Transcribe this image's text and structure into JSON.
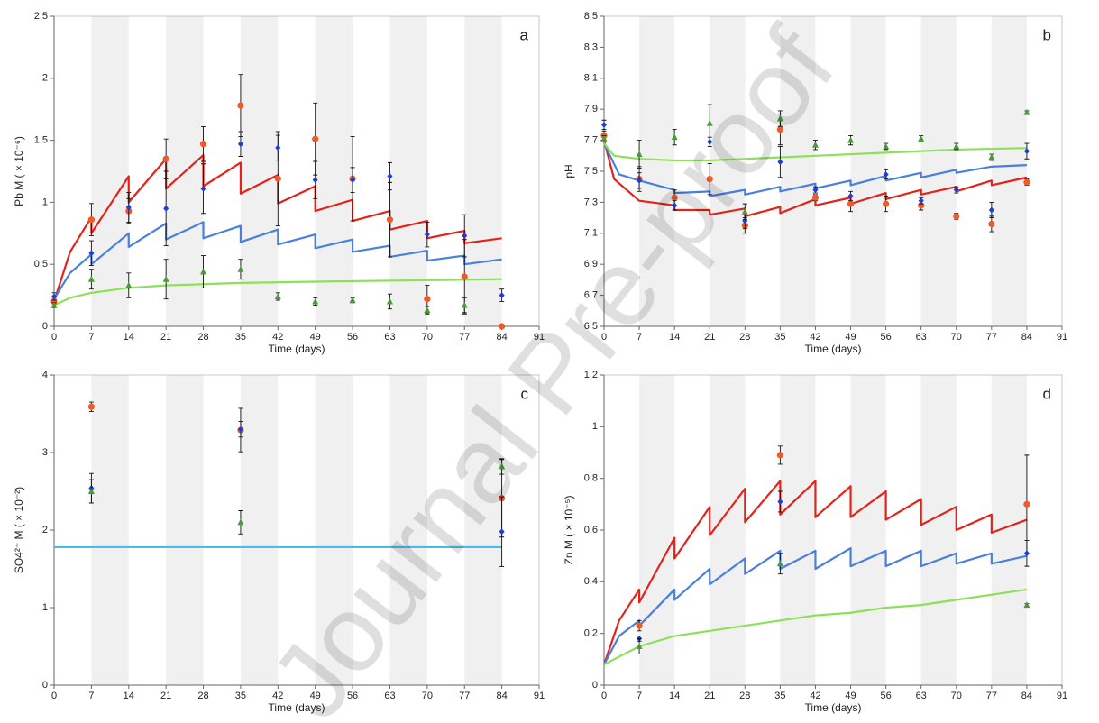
{
  "watermark": "Journal Pre-proof",
  "chart_data": [
    {
      "type": "line",
      "label": "a",
      "xlabel": "Time (days)",
      "ylabel": "Pb M ( × 10⁻⁶)",
      "xlim": [
        0,
        91
      ],
      "xticks": [
        0,
        7,
        14,
        21,
        28,
        35,
        42,
        49,
        56,
        63,
        70,
        77,
        84,
        91
      ],
      "ylim": [
        0,
        2.5
      ],
      "yticks": [
        0,
        0.5,
        1,
        1.5,
        2,
        2.5
      ],
      "shaded_bands": true,
      "lines": [
        {
          "color": "#e2231a",
          "x": [
            0,
            3,
            7,
            7,
            14,
            14,
            21,
            21,
            28,
            28,
            35,
            35,
            42,
            42,
            49,
            49,
            56,
            56,
            63,
            63,
            70,
            70,
            77,
            77,
            84
          ],
          "values": [
            0.2,
            0.6,
            0.88,
            0.75,
            1.21,
            1.0,
            1.35,
            1.11,
            1.38,
            1.13,
            1.32,
            1.07,
            1.22,
            0.99,
            1.13,
            0.93,
            1.02,
            0.85,
            0.93,
            0.78,
            0.85,
            0.71,
            0.77,
            0.67,
            0.71
          ]
        },
        {
          "color": "#4a7fdc",
          "x": [
            0,
            3,
            7,
            7,
            14,
            14,
            21,
            21,
            28,
            28,
            35,
            35,
            42,
            42,
            49,
            49,
            56,
            56,
            63,
            63,
            70,
            70,
            77,
            77,
            84
          ],
          "values": [
            0.22,
            0.43,
            0.58,
            0.5,
            0.75,
            0.64,
            0.83,
            0.7,
            0.84,
            0.71,
            0.81,
            0.68,
            0.78,
            0.66,
            0.74,
            0.63,
            0.7,
            0.6,
            0.65,
            0.56,
            0.61,
            0.53,
            0.57,
            0.5,
            0.54
          ]
        },
        {
          "color": "#8de05a",
          "x": [
            0,
            3,
            7,
            14,
            21,
            28,
            35,
            49,
            84
          ],
          "values": [
            0.17,
            0.23,
            0.27,
            0.31,
            0.33,
            0.34,
            0.35,
            0.36,
            0.38
          ]
        }
      ],
      "points": [
        {
          "color": "#f05a28",
          "marker": "circle",
          "x": [
            0,
            7,
            14,
            21,
            28,
            35,
            42,
            49,
            56,
            63,
            70,
            77,
            84
          ],
          "values": [
            0.2,
            0.86,
            0.93,
            1.35,
            1.47,
            1.78,
            1.19,
            1.51,
            1.19,
            0.86,
            0.22,
            0.4,
            0.0
          ],
          "errors": [
            0.02,
            0.13,
            0.1,
            0.16,
            0.14,
            0.25,
            0.38,
            0.29,
            0.34,
            0.3,
            0.11,
            0.3,
            0
          ]
        },
        {
          "color": "#1b3fd6",
          "marker": "diamond",
          "x": [
            0,
            7,
            14,
            21,
            28,
            35,
            42,
            49,
            56,
            63,
            70,
            77,
            84
          ],
          "values": [
            0.24,
            0.59,
            0.96,
            0.95,
            1.11,
            1.47,
            1.44,
            1.18,
            1.18,
            1.21,
            0.74,
            0.73,
            0.25
          ],
          "errors": [
            0.03,
            0.1,
            0.12,
            0.3,
            0.2,
            0.1,
            0.1,
            0.15,
            0.1,
            0.11,
            0.1,
            0.17,
            0.05
          ]
        },
        {
          "color": "#4a9a3a",
          "marker": "triangle",
          "x": [
            0,
            7,
            14,
            21,
            28,
            35,
            42,
            49,
            56,
            63,
            70,
            77,
            84
          ],
          "values": [
            0.17,
            0.38,
            0.33,
            0.38,
            0.44,
            0.46,
            0.24,
            0.2,
            0.21,
            0.2,
            0.13,
            0.17,
            null
          ],
          "errors": [
            0.02,
            0.08,
            0.1,
            0.16,
            0.13,
            0.08,
            0.03,
            0.03,
            0.02,
            0.06,
            0.03,
            0.06,
            null
          ]
        }
      ]
    },
    {
      "type": "line",
      "label": "b",
      "xlabel": "Time (days)",
      "ylabel": "pH",
      "xlim": [
        0,
        91
      ],
      "xticks": [
        0,
        7,
        14,
        21,
        28,
        35,
        42,
        49,
        56,
        63,
        70,
        77,
        84,
        91
      ],
      "ylim": [
        6.5,
        8.5
      ],
      "yticks": [
        6.5,
        6.7,
        6.9,
        7.1,
        7.3,
        7.5,
        7.7,
        7.9,
        8.1,
        8.3,
        8.5
      ],
      "shaded_bands": true,
      "lines": [
        {
          "color": "#e2231a",
          "x": [
            0,
            2,
            7,
            14,
            14,
            21,
            21,
            28,
            28,
            35,
            35,
            42,
            42,
            49,
            49,
            56,
            56,
            63,
            63,
            70,
            70,
            77,
            77,
            84
          ],
          "values": [
            7.7,
            7.45,
            7.31,
            7.28,
            7.25,
            7.25,
            7.22,
            7.26,
            7.21,
            7.27,
            7.23,
            7.32,
            7.28,
            7.33,
            7.29,
            7.36,
            7.32,
            7.38,
            7.35,
            7.4,
            7.37,
            7.44,
            7.41,
            7.46
          ]
        },
        {
          "color": "#4a7fdc",
          "x": [
            0,
            3,
            7,
            14,
            14,
            21,
            21,
            28,
            28,
            35,
            35,
            42,
            42,
            49,
            49,
            56,
            56,
            63,
            63,
            70,
            70,
            77,
            84
          ],
          "values": [
            7.68,
            7.48,
            7.44,
            7.38,
            7.36,
            7.37,
            7.34,
            7.38,
            7.35,
            7.4,
            7.37,
            7.42,
            7.39,
            7.44,
            7.41,
            7.47,
            7.44,
            7.49,
            7.46,
            7.51,
            7.49,
            7.53,
            7.54
          ]
        },
        {
          "color": "#8de05a",
          "x": [
            0,
            2,
            7,
            14,
            21,
            28,
            42,
            56,
            70,
            84
          ],
          "values": [
            7.68,
            7.6,
            7.58,
            7.57,
            7.57,
            7.58,
            7.6,
            7.62,
            7.64,
            7.65
          ]
        }
      ],
      "points": [
        {
          "color": "#f05a28",
          "marker": "circle",
          "x": [
            0,
            7,
            14,
            21,
            28,
            35,
            42,
            49,
            56,
            63,
            70,
            77,
            84
          ],
          "values": [
            7.73,
            7.45,
            7.33,
            7.45,
            7.15,
            7.77,
            7.33,
            7.29,
            7.29,
            7.28,
            7.21,
            7.16,
            7.43
          ],
          "errors": [
            0.03,
            0.08,
            0.05,
            0.1,
            0.05,
            0.1,
            0.02,
            0.05,
            0.05,
            0.03,
            0.02,
            0.05,
            0.02
          ]
        },
        {
          "color": "#1b3fd6",
          "marker": "diamond",
          "x": [
            0,
            7,
            14,
            21,
            28,
            35,
            42,
            49,
            56,
            63,
            70,
            77,
            84
          ],
          "values": [
            7.8,
            7.44,
            7.28,
            7.69,
            7.18,
            7.56,
            7.38,
            7.34,
            7.48,
            7.31,
            7.38,
            7.25,
            7.63
          ],
          "errors": [
            0.03,
            0.05,
            0.03,
            0.03,
            0.05,
            0.1,
            0.02,
            0.03,
            0.03,
            0.02,
            0.02,
            0.05,
            0.05
          ]
        },
        {
          "color": "#4a9a3a",
          "marker": "triangle",
          "x": [
            0,
            7,
            14,
            21,
            28,
            35,
            42,
            49,
            56,
            63,
            70,
            77,
            84
          ],
          "values": [
            7.71,
            7.61,
            7.72,
            7.81,
            7.24,
            7.84,
            7.67,
            7.7,
            7.66,
            7.71,
            7.66,
            7.59,
            7.88
          ],
          "errors": [
            0.02,
            0.09,
            0.05,
            0.12,
            0.05,
            0.05,
            0.03,
            0.03,
            0.02,
            0.02,
            0.02,
            0.02,
            0.01
          ]
        }
      ]
    },
    {
      "type": "line",
      "label": "c",
      "xlabel": "Time (days)",
      "ylabel": "SO4²⁻ M ( × 10⁻²)",
      "xlim": [
        0,
        91
      ],
      "xticks": [
        0,
        7,
        14,
        21,
        28,
        35,
        42,
        49,
        56,
        63,
        70,
        77,
        84,
        91
      ],
      "ylim": [
        0,
        4
      ],
      "yticks": [
        0,
        1,
        2,
        3,
        4
      ],
      "shaded_bands": true,
      "lines": [
        {
          "color": "#4fb8ee",
          "x": [
            0,
            84
          ],
          "values": [
            1.78,
            1.78
          ]
        }
      ],
      "points": [
        {
          "color": "#f05a28",
          "marker": "circle",
          "x": [
            7,
            35,
            84
          ],
          "values": [
            3.59,
            3.29,
            2.41
          ],
          "errors": [
            0.06,
            0.28,
            0.5
          ]
        },
        {
          "color": "#1b3fd6",
          "marker": "diamond",
          "x": [
            7,
            35,
            84
          ],
          "values": [
            2.54,
            3.3,
            1.98
          ],
          "errors": [
            0.19,
            0.1,
            0.45
          ]
        },
        {
          "color": "#4a9a3a",
          "marker": "triangle",
          "x": [
            7,
            35,
            84
          ],
          "values": [
            2.5,
            2.1,
            2.82
          ],
          "errors": [
            0.15,
            0.15,
            0.1
          ]
        }
      ]
    },
    {
      "type": "line",
      "label": "d",
      "xlabel": "Time (days)",
      "ylabel": "Zn M ( × 10⁻⁵)",
      "xlim": [
        0,
        91
      ],
      "xticks": [
        0,
        7,
        14,
        21,
        28,
        35,
        42,
        49,
        56,
        63,
        70,
        77,
        84,
        91
      ],
      "ylim": [
        0,
        1.2
      ],
      "yticks": [
        0,
        0.2,
        0.4,
        0.6,
        0.8,
        1,
        1.2
      ],
      "shaded_bands": true,
      "lines": [
        {
          "color": "#e2231a",
          "x": [
            0,
            3,
            7,
            7,
            14,
            14,
            21,
            21,
            28,
            28,
            35,
            35,
            42,
            42,
            49,
            49,
            56,
            56,
            63,
            63,
            70,
            70,
            77,
            77,
            84
          ],
          "values": [
            0.08,
            0.25,
            0.37,
            0.32,
            0.57,
            0.49,
            0.69,
            0.58,
            0.76,
            0.63,
            0.79,
            0.66,
            0.79,
            0.65,
            0.77,
            0.65,
            0.75,
            0.64,
            0.72,
            0.62,
            0.69,
            0.6,
            0.66,
            0.59,
            0.64
          ]
        },
        {
          "color": "#4a7fdc",
          "x": [
            0,
            3,
            7,
            7,
            14,
            14,
            21,
            21,
            28,
            28,
            35,
            35,
            42,
            42,
            49,
            49,
            56,
            56,
            63,
            63,
            70,
            70,
            77,
            77,
            84
          ],
          "values": [
            0.08,
            0.19,
            0.25,
            0.23,
            0.37,
            0.33,
            0.45,
            0.39,
            0.49,
            0.43,
            0.52,
            0.45,
            0.52,
            0.45,
            0.53,
            0.46,
            0.52,
            0.46,
            0.52,
            0.46,
            0.51,
            0.47,
            0.51,
            0.47,
            0.5
          ]
        },
        {
          "color": "#8de05a",
          "x": [
            0,
            7,
            14,
            21,
            28,
            35,
            42,
            49,
            56,
            63,
            70,
            77,
            84
          ],
          "values": [
            0.08,
            0.15,
            0.19,
            0.21,
            0.23,
            0.25,
            0.27,
            0.28,
            0.3,
            0.31,
            0.33,
            0.35,
            0.37
          ]
        }
      ],
      "points": [
        {
          "color": "#f05a28",
          "marker": "circle",
          "x": [
            7,
            35,
            84
          ],
          "values": [
            0.23,
            0.89,
            0.7
          ],
          "errors": [
            0.02,
            0.035,
            0.19
          ]
        },
        {
          "color": "#1b3fd6",
          "marker": "diamond",
          "x": [
            7,
            35,
            84
          ],
          "values": [
            0.18,
            0.71,
            0.51
          ],
          "errors": [
            0.01,
            0.04,
            0.05
          ]
        },
        {
          "color": "#4a9a3a",
          "marker": "triangle",
          "x": [
            7,
            35,
            84
          ],
          "values": [
            0.15,
            0.47,
            0.31
          ],
          "errors": [
            0.03,
            0.04,
            0.005
          ]
        }
      ]
    }
  ]
}
